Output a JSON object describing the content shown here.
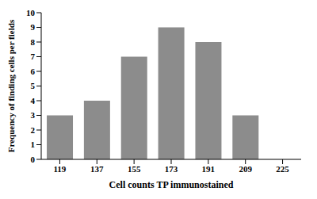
{
  "chart_data": {
    "type": "bar",
    "x_label": "Cell counts TP immunostained",
    "y_label": "Frequency of finding cells per fields",
    "categories": [
      "119",
      "137",
      "155",
      "173",
      "191",
      "209",
      "225"
    ],
    "values": [
      3,
      4,
      7,
      9,
      8,
      3,
      0
    ],
    "color": "#8c8c8c",
    "ylim": [
      0,
      10
    ],
    "yticks": [
      0,
      1,
      2,
      3,
      4,
      5,
      6,
      7,
      8,
      9,
      10
    ],
    "grid": false
  }
}
